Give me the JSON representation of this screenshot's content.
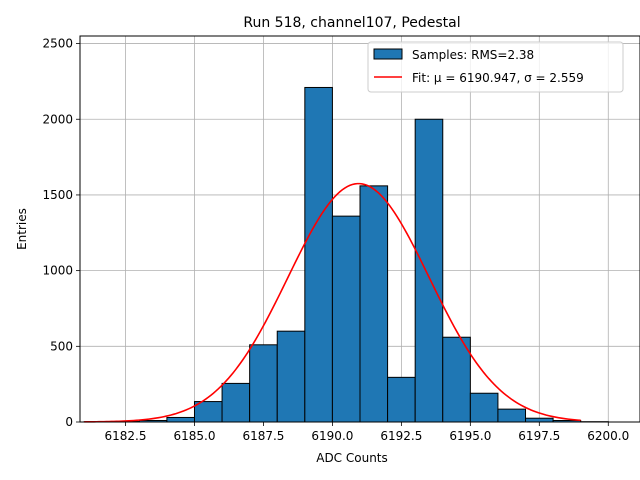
{
  "chart_data": {
    "type": "bar",
    "title": "Run 518, channel107, Pedestal",
    "xlabel": "ADC Counts",
    "ylabel": "Entries",
    "xlim": [
      6180.85,
      6201.15
    ],
    "ylim": [
      0,
      2550
    ],
    "grid": true,
    "legend_position": "top-right",
    "x_ticks": [
      6182.5,
      6185.0,
      6187.5,
      6190.0,
      6192.5,
      6195.0,
      6197.5,
      6200.0
    ],
    "y_ticks": [
      0,
      500,
      1000,
      1500,
      2000,
      2500
    ],
    "bins": {
      "edges": [
        6181.0,
        6182.0,
        6183.0,
        6184.0,
        6185.0,
        6186.0,
        6187.0,
        6188.0,
        6189.0,
        6190.0,
        6191.0,
        6192.0,
        6193.0,
        6194.0,
        6195.0,
        6196.0,
        6197.0,
        6198.0,
        6199.0,
        6200.0,
        6201.0
      ],
      "counts": [
        2,
        3,
        10,
        30,
        135,
        255,
        510,
        600,
        2210,
        1360,
        1560,
        295,
        2000,
        560,
        190,
        85,
        25,
        10,
        2,
        0
      ]
    },
    "series": [
      {
        "name": "Samples: RMS=2.38",
        "kind": "histogram",
        "color": "#1f77b4"
      },
      {
        "name": "Fit: μ = 6190.947, σ = 2.559",
        "kind": "gaussian_fit",
        "color": "#ff0000",
        "mu": 6190.947,
        "sigma": 2.559,
        "amplitude": 1575,
        "x_range": [
          6181.0,
          6199.0
        ]
      }
    ]
  }
}
